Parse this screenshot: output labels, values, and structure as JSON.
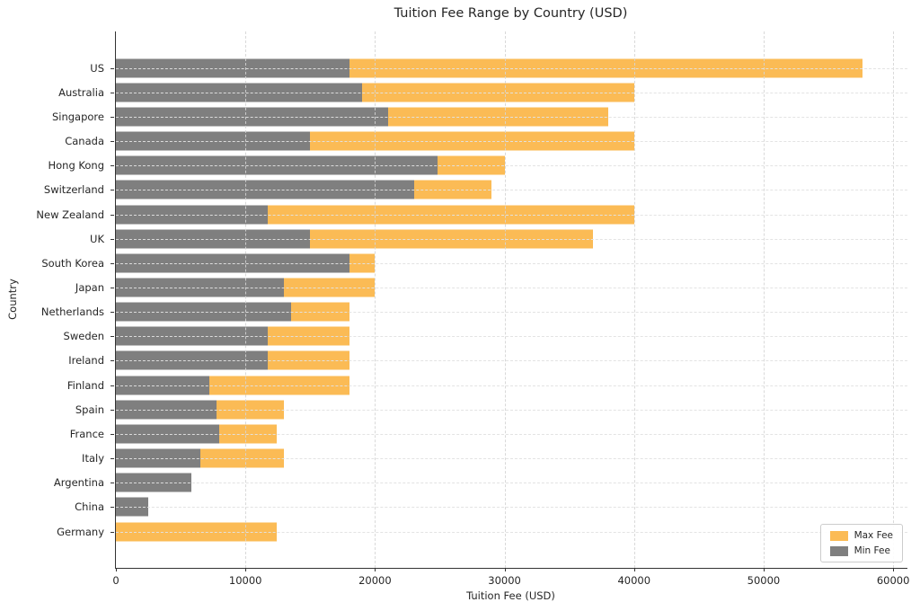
{
  "chart_data": {
    "type": "bar",
    "orientation": "horizontal",
    "title": "Tuition Fee Range by Country (USD)",
    "xlabel": "Tuition Fee (USD)",
    "ylabel": "Country",
    "categories": [
      "US",
      "Australia",
      "Singapore",
      "Canada",
      "Hong Kong",
      "Switzerland",
      "New Zealand",
      "UK",
      "South Korea",
      "Japan",
      "Netherlands",
      "Sweden",
      "Ireland",
      "Finland",
      "Spain",
      "France",
      "Italy",
      "Argentina",
      "China",
      "Germany"
    ],
    "series": [
      {
        "name": "Max Fee",
        "color": "#FBBB55",
        "values": [
          57600,
          40000,
          38000,
          40000,
          30000,
          29000,
          40000,
          36800,
          20000,
          20000,
          18000,
          18000,
          18000,
          18000,
          13000,
          12400,
          13000,
          5800,
          2500,
          12400
        ]
      },
      {
        "name": "Min Fee",
        "color": "#7F7F7F",
        "values": [
          18000,
          19000,
          21000,
          15000,
          24800,
          23000,
          11700,
          15000,
          18000,
          13000,
          13500,
          11700,
          11700,
          7200,
          7800,
          8000,
          6500,
          5800,
          2500,
          0
        ]
      }
    ],
    "bar_style": "overlapping (Min Fee bar drawn from 0 on top of Max Fee bar; where max not visible it is covered by min)",
    "x_ticks": [
      0,
      10000,
      20000,
      30000,
      40000,
      50000,
      60000
    ],
    "xlim": [
      0,
      61100
    ],
    "grid": true,
    "grid_style": "dashed",
    "legend": {
      "position": "lower right",
      "entries": [
        "Max Fee",
        "Min Fee"
      ]
    }
  }
}
